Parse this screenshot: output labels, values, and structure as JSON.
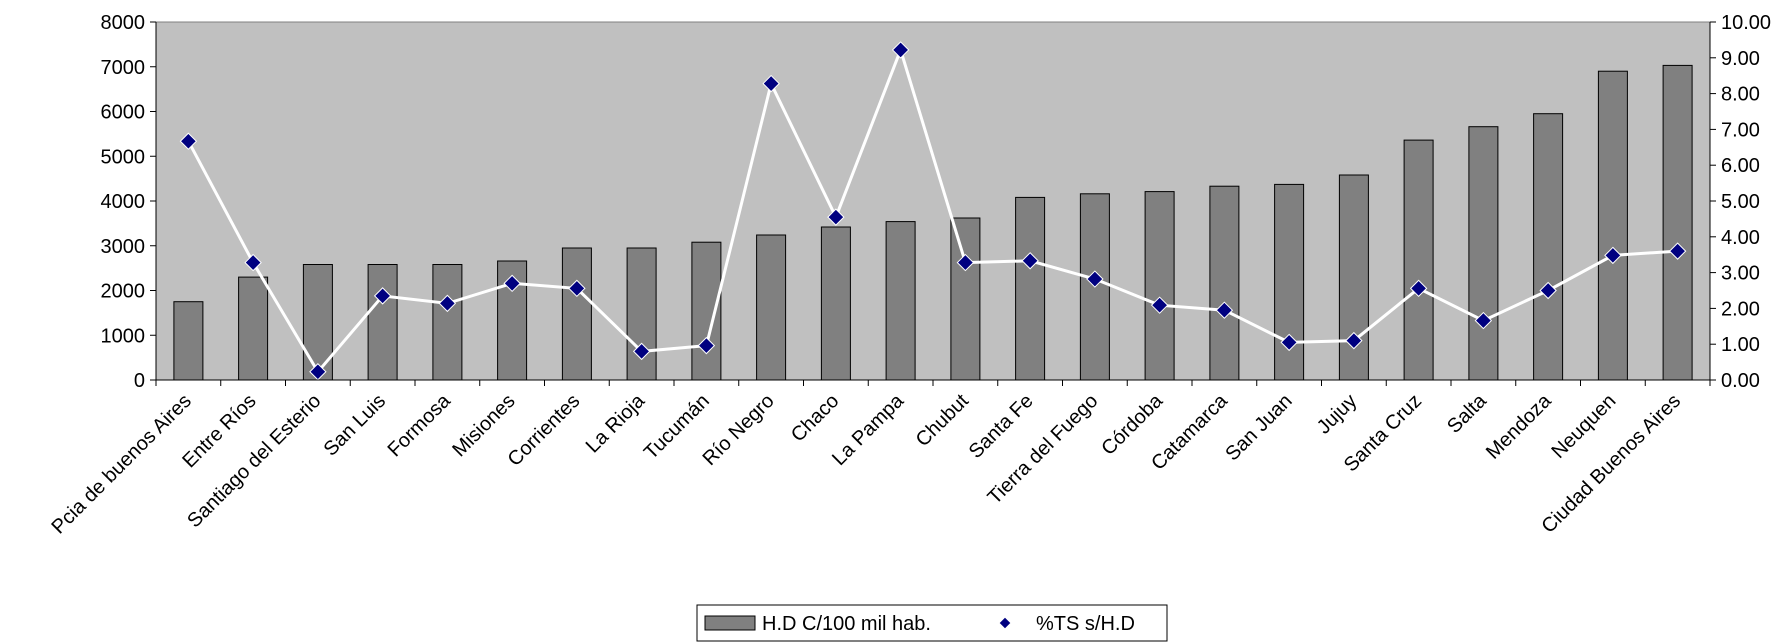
{
  "chart_data": {
    "type": "bar",
    "categories": [
      "Pcia de buenos Aires",
      "Entre Ríos",
      "Santiago del Esterio",
      "San Luis",
      "Formosa",
      "Misiones",
      "Corrientes",
      "La Rioja",
      "Tucumán",
      "Río Negro",
      "Chaco",
      "La Pampa",
      "Chubut",
      "Santa Fe",
      "Tierra del Fuego",
      "Córdoba",
      "Catamarca",
      "San Juan",
      "Jujuy",
      "Santa Cruz",
      "Salta",
      "Mendoza",
      "Neuquen",
      "Ciudad Buenos Aires"
    ],
    "series": [
      {
        "name": "H.D C/100 mil hab.",
        "type": "bar",
        "axis": "left",
        "color": "#808080",
        "values": [
          1750,
          2300,
          2580,
          2580,
          2580,
          2660,
          2950,
          2950,
          3080,
          3240,
          3420,
          3540,
          3620,
          4080,
          4160,
          4210,
          4330,
          4370,
          4580,
          5360,
          5660,
          5950,
          6900,
          7030
        ]
      },
      {
        "name": "%TS s/H.D",
        "type": "line",
        "axis": "right",
        "color": "#000080",
        "line_color": "#ffffff",
        "values": [
          6.67,
          3.28,
          0.23,
          2.35,
          2.14,
          2.7,
          2.56,
          0.8,
          0.96,
          8.28,
          4.55,
          9.22,
          3.28,
          3.33,
          2.82,
          2.09,
          1.95,
          1.05,
          1.1,
          2.56,
          1.66,
          2.5,
          3.48,
          3.6
        ]
      }
    ],
    "y_left": {
      "min": 0,
      "max": 8000,
      "step": 1000,
      "ticks": [
        "0",
        "1000",
        "2000",
        "3000",
        "4000",
        "5000",
        "6000",
        "7000",
        "8000"
      ]
    },
    "y_right": {
      "min": 0,
      "max": 10,
      "step": 1,
      "ticks": [
        "0.00",
        "1.00",
        "2.00",
        "3.00",
        "4.00",
        "5.00",
        "6.00",
        "7.00",
        "8.00",
        "9.00",
        "10.00"
      ]
    },
    "plot_background": "#c0c0c0",
    "grid": false,
    "legend_position": "bottom"
  }
}
